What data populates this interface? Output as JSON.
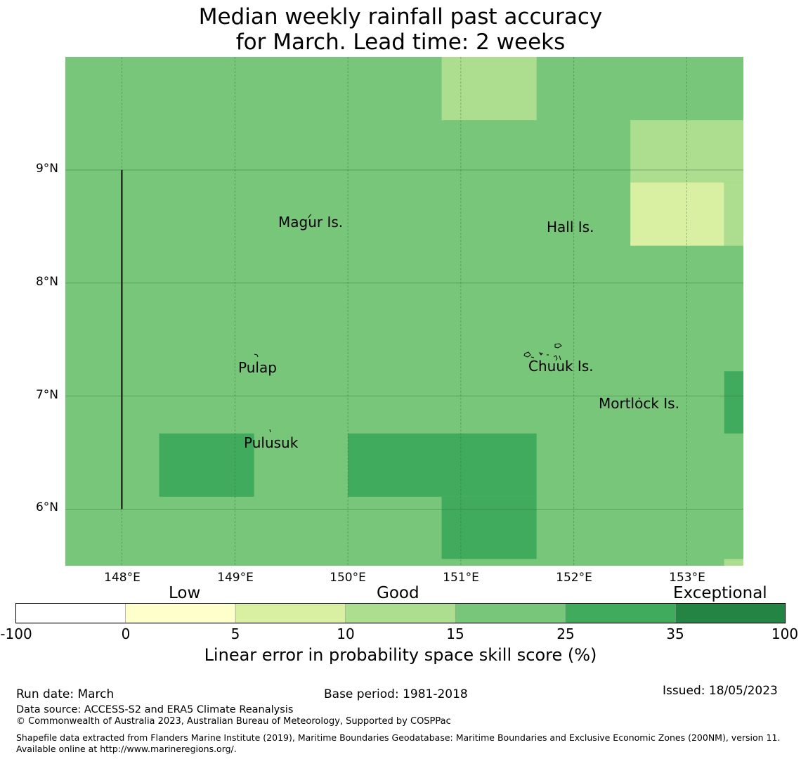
{
  "title": {
    "line1": "Median weekly rainfall past accuracy",
    "line2": "for March. Lead time: 2 weeks"
  },
  "map": {
    "lat_labels": [
      "9°N",
      "8°N",
      "7°N",
      "6°N"
    ],
    "lon_labels": [
      "148°E",
      "149°E",
      "150°E",
      "151°E",
      "152°E",
      "153°E"
    ],
    "places": [
      "Magur Is.",
      "Hall Is.",
      "Pulap",
      "Chuuk Is.",
      "Mortlock Is.",
      "Pulusuk"
    ],
    "extent": {
      "lon_min": 147.5,
      "lon_max": 153.5,
      "lat_min": 5.5,
      "lat_max": 10.0
    },
    "background_category": "15-25",
    "cells": [
      {
        "lon0": 150.83,
        "lon1": 151.67,
        "lat0": 9.44,
        "lat1": 10.0,
        "category": "10-15"
      },
      {
        "lon0": 152.5,
        "lon1": 153.5,
        "lat0": 8.89,
        "lat1": 9.44,
        "category": "10-15"
      },
      {
        "lon0": 152.5,
        "lon1": 153.33,
        "lat0": 8.33,
        "lat1": 8.89,
        "category": "5-10"
      },
      {
        "lon0": 153.33,
        "lon1": 153.5,
        "lat0": 8.33,
        "lat1": 8.89,
        "category": "10-15"
      },
      {
        "lon0": 153.33,
        "lon1": 153.5,
        "lat0": 6.67,
        "lat1": 7.22,
        "category": "25-35"
      },
      {
        "lon0": 148.33,
        "lon1": 149.17,
        "lat0": 6.11,
        "lat1": 6.67,
        "category": "25-35"
      },
      {
        "lon0": 150.0,
        "lon1": 151.67,
        "lat0": 6.11,
        "lat1": 6.67,
        "category": "25-35"
      },
      {
        "lon0": 150.83,
        "lon1": 151.67,
        "lat0": 5.56,
        "lat1": 6.11,
        "category": "25-35"
      },
      {
        "lon0": 153.33,
        "lon1": 153.5,
        "lat0": 5.5,
        "lat1": 5.56,
        "category": "10-15"
      }
    ],
    "boundary_line": {
      "lon": 148.0,
      "lat0": 6.0,
      "lat1": 9.0
    }
  },
  "colorbar": {
    "categories": [
      "Low",
      "Good",
      "Exceptional"
    ],
    "ticks": [
      "-100",
      "0",
      "5",
      "10",
      "15",
      "25",
      "35",
      "100"
    ],
    "colors": [
      "#ffffff",
      "#ffffcc",
      "#d9f0a3",
      "#addd8e",
      "#78c679",
      "#41ab5d",
      "#238443"
    ],
    "label": "Linear error in probability space skill score (%)"
  },
  "category_colors": {
    "5-10": "#d9f0a3",
    "10-15": "#addd8e",
    "15-25": "#78c679",
    "25-35": "#41ab5d"
  },
  "footer": {
    "run_date": "Run date: March",
    "base_period": "Base period: 1981-2018",
    "issued": "Issued: 18/05/2023",
    "data_source": "Data source: ACCESS-S2 and ERA5 Climate Reanalysis",
    "copyright": "© Commonwealth of Australia 2023, Australian Bureau of Meteorology, Supported by COSPPac",
    "shapefile": "Shapefile data extracted from Flanders Marine Institute (2019), Maritime Boundaries Geodatabase: Maritime Boundaries and Exclusive Economic Zones (200NM), version 11. Available online at http://www.marineregions.org/."
  }
}
